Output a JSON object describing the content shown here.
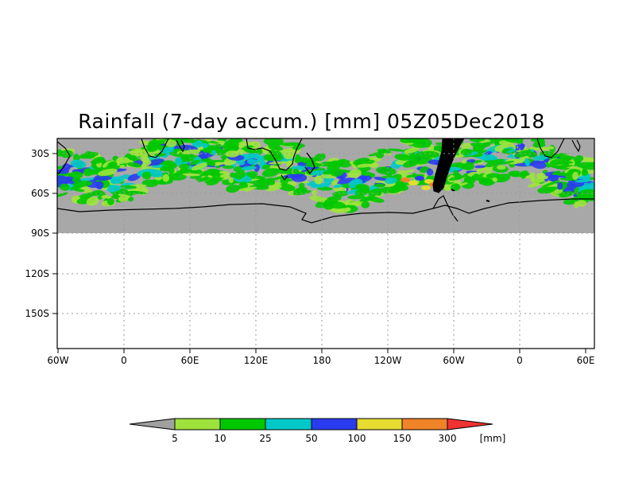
{
  "title": "Rainfall (7-day accum.) [mm] 05Z05Dec2018",
  "map": {
    "y_labels": [
      "30S",
      "60S",
      "90S",
      "120S",
      "150S"
    ],
    "x_labels": [
      "60W",
      "0",
      "60E",
      "120E",
      "180",
      "120W",
      "60W",
      "0",
      "60E"
    ],
    "colors": {
      "ocean_dry": "#a8a8a8",
      "land_outline": "#000000",
      "grid": "#9a9a9a"
    }
  },
  "legend": {
    "unit": "[mm]",
    "thresholds": [
      "5",
      "10",
      "25",
      "50",
      "100",
      "150",
      "300"
    ],
    "colors": [
      "#a0a0a0",
      "#9ee33c",
      "#00c800",
      "#00c8c8",
      "#2a3cf0",
      "#e6dc32",
      "#f08228",
      "#f03232"
    ]
  }
}
